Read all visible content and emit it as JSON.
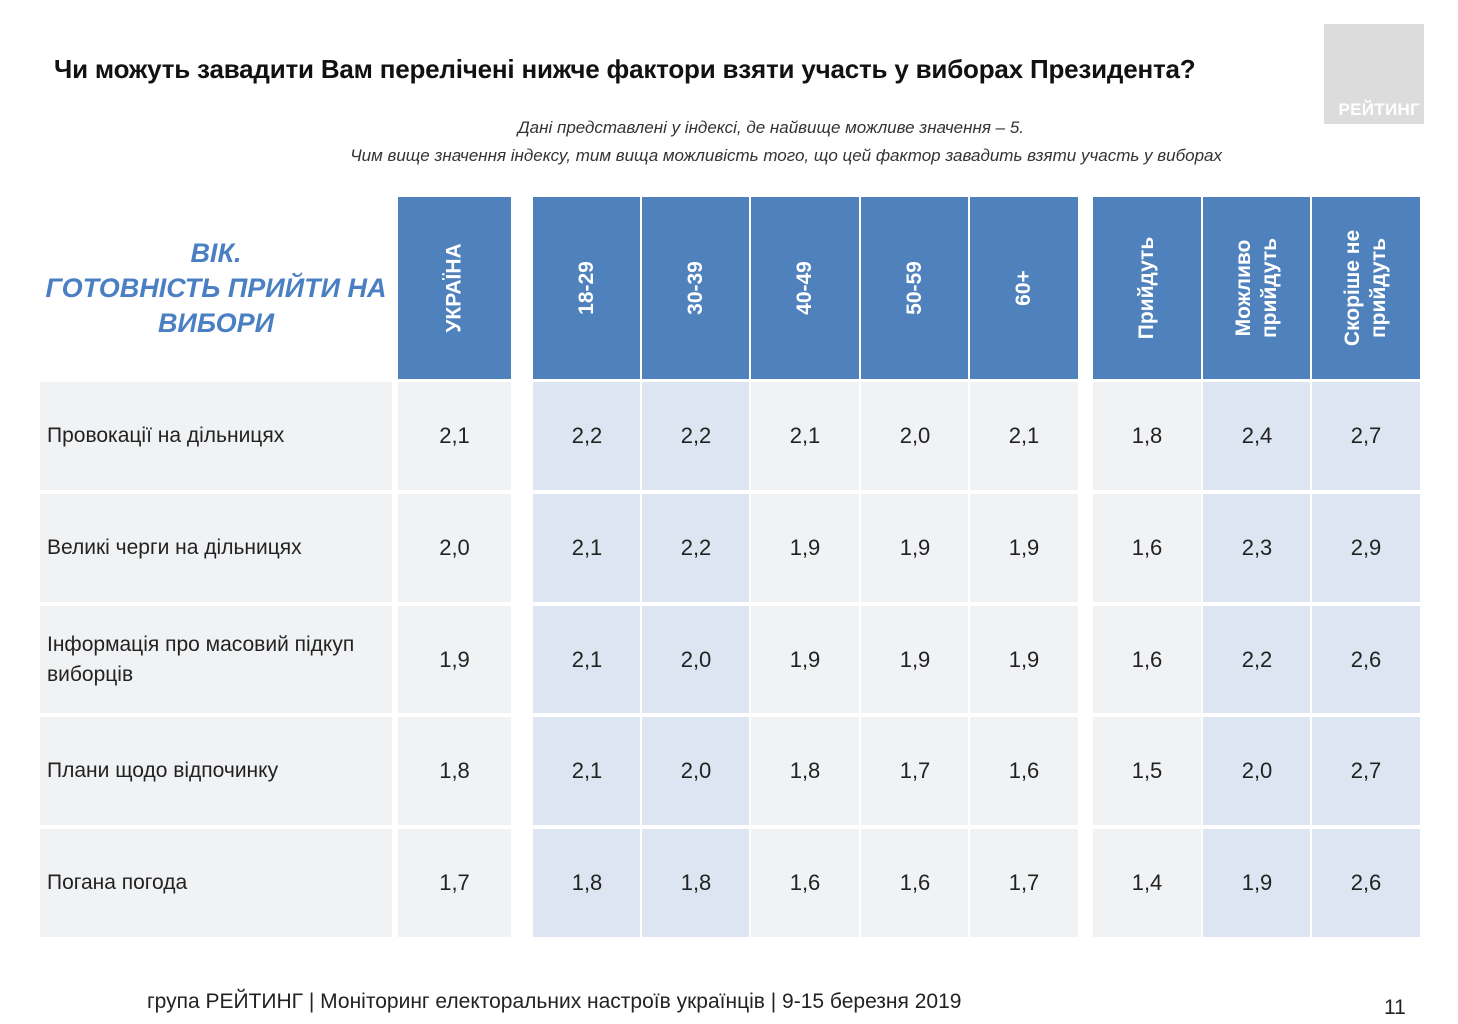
{
  "title": "Чи можуть завадити Вам перелічені нижче фактори взяти участь у виборах Президента?",
  "logo_text": "РЕЙТИНГ",
  "notes": [
    "Дані представлені у індексі, де найвище можливе значення – 5.",
    "Чим вище значення індексу, тим вища можливість того, що цей фактор завадить взяти участь у виборах"
  ],
  "header_left": [
    "ВІК.",
    "ГОТОВНІСТЬ ПРИЙТИ НА",
    "ВИБОРИ"
  ],
  "footer": "група РЕЙТИНГ | Моніторинг електоральних настроїв українців  | 9-15 березня 2019",
  "page_number": "11",
  "colors": {
    "header_blue": "#4f81bd",
    "light_blue_cell": "#dce5f1",
    "row_grey": "#f1f2f4",
    "header_text_blue": "#4a7fc4"
  },
  "chart_data": {
    "type": "table",
    "columns": [
      "УКРАЇНА",
      "18-29",
      "30-39",
      "40-49",
      "50-59",
      "60+",
      "Прийдуть",
      "Можливо\nприйдуть",
      "Скоріше не\nприйдуть"
    ],
    "rows": [
      {
        "label": "Провокації на дільницях",
        "values": [
          "2,1",
          "2,2",
          "2,2",
          "2,1",
          "2,0",
          "2,1",
          "1,8",
          "2,4",
          "2,7"
        ]
      },
      {
        "label": "Великі черги на дільницях",
        "values": [
          "2,0",
          "2,1",
          "2,2",
          "1,9",
          "1,9",
          "1,9",
          "1,6",
          "2,3",
          "2,9"
        ]
      },
      {
        "label": "Інформація про масовий підкуп виборців",
        "values": [
          "1,9",
          "2,1",
          "2,0",
          "1,9",
          "1,9",
          "1,9",
          "1,6",
          "2,2",
          "2,6"
        ]
      },
      {
        "label": "Плани щодо відпочинку",
        "values": [
          "1,8",
          "2,1",
          "2,0",
          "1,8",
          "1,7",
          "1,6",
          "1,5",
          "2,0",
          "2,7"
        ]
      },
      {
        "label": "Погана погода",
        "values": [
          "1,7",
          "1,8",
          "1,8",
          "1,6",
          "1,6",
          "1,7",
          "1,4",
          "1,9",
          "2,6"
        ]
      }
    ]
  }
}
